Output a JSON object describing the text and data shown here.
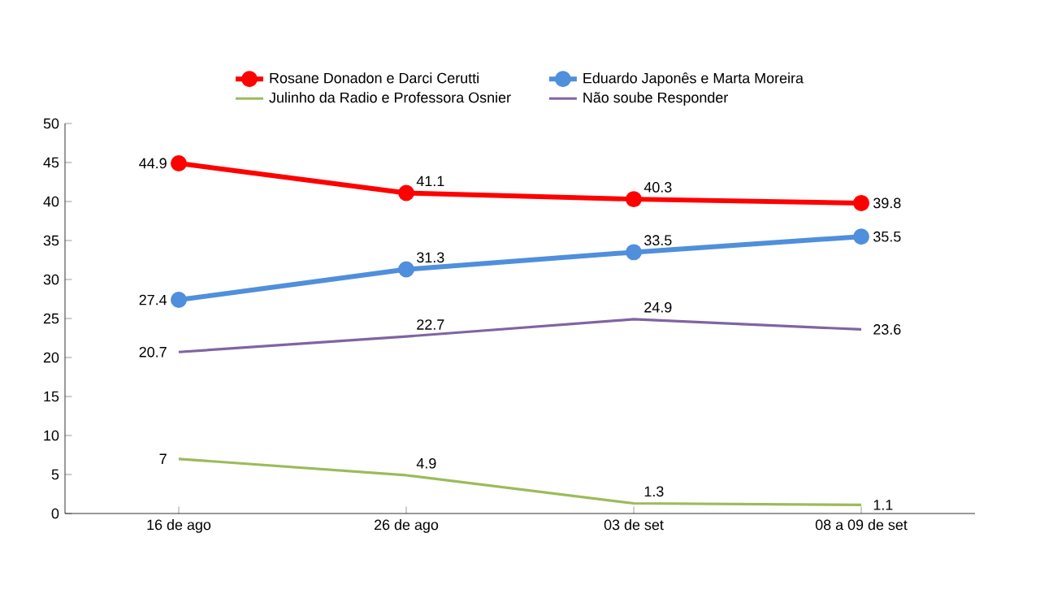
{
  "chart_data": {
    "type": "line",
    "categories": [
      "16 de ago",
      "26 de ago",
      "03 de set",
      "08 a 09 de set"
    ],
    "series": [
      {
        "name": "Rosane Donadon e Darci Cerutti",
        "color": "#ff0000",
        "values": [
          44.9,
          41.1,
          40.3,
          39.8
        ],
        "marker": "circle"
      },
      {
        "name": "Eduardo Japonês e Marta Moreira",
        "color": "#4f8fdc",
        "values": [
          27.4,
          31.3,
          33.5,
          35.5
        ],
        "marker": "circle"
      },
      {
        "name": "Julinho da Radio e Professora Osnier",
        "color": "#9bbb59",
        "values": [
          7,
          4.9,
          1.3,
          1.1
        ],
        "marker": "none"
      },
      {
        "name": "Não soube Responder",
        "color": "#8064a2",
        "values": [
          20.7,
          22.7,
          24.9,
          23.6
        ],
        "marker": "none"
      }
    ],
    "ylim": [
      0,
      50
    ],
    "yticks": [
      0,
      5,
      10,
      15,
      20,
      25,
      30,
      35,
      40,
      45,
      50
    ],
    "data_labels": true,
    "legend": "top",
    "line_style": "solid"
  }
}
